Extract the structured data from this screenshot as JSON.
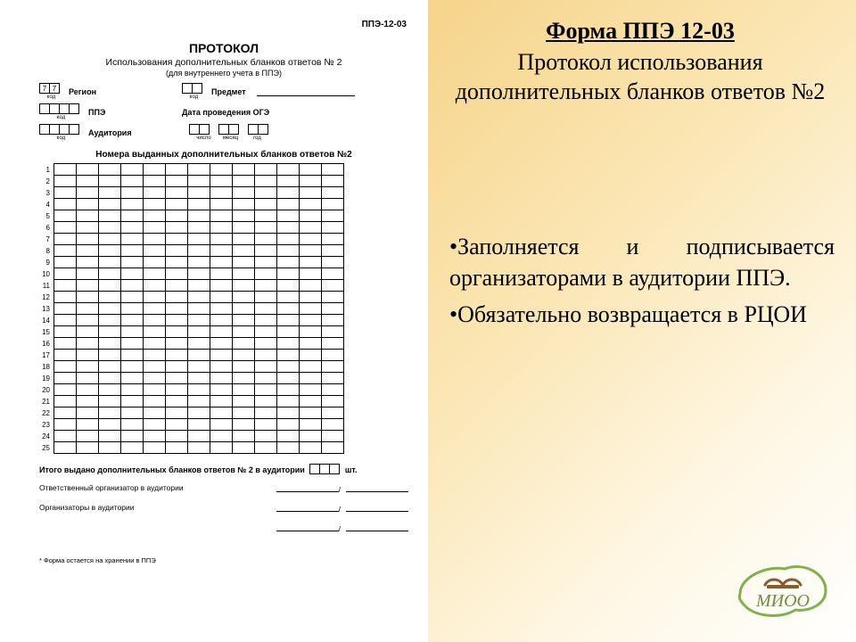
{
  "colors": {
    "grad1": "#f6d48a",
    "grad2": "#fbe7b6",
    "grad3": "#fef6e1",
    "grad4": "#ffffff",
    "logo_green": "#7fb24a",
    "logo_green_dark": "#5e8a34",
    "logo_brown": "#8a5a2b",
    "logo_text": "#6b8e3d"
  },
  "form": {
    "code": "ППЭ-12-03",
    "title_line1": "ПРОТОКОЛ",
    "title_line2": "Использования дополнительных бланков ответов № 2",
    "title_line3": "(для внутреннего учета в ППЭ)",
    "region_label": "Регион",
    "region_value": [
      "7",
      "7"
    ],
    "ppe_label": "ППЭ",
    "aud_label": "Аудитория",
    "subject_label": "Предмет",
    "date_label": "Дата проведения ОГЭ",
    "date_sub": {
      "d": "число",
      "m": "месяц",
      "y": "год"
    },
    "kod": "код",
    "table_caption": "Номера выданных дополнительных бланков ответов №2",
    "row_count": 25,
    "cols_per_row": 13,
    "totals_text_a": "Итого выдано дополнительных бланков ответов № 2 в аудитории",
    "totals_text_b": "шт.",
    "sign1": "Ответственный организатор в аудитории",
    "sign2": "Организаторы в аудитории",
    "footnote": "* Форма остается на хранении в ППЭ"
  },
  "rightPanel": {
    "heading": "Форма ППЭ 12-03",
    "subtitle": "Протокол использования дополнительных бланков ответов №2",
    "bullets": [
      "Заполняется и подписывается организаторами в аудитории ППЭ.",
      "Обязательно возвращается в РЦОИ"
    ],
    "logo_text": "МИОО"
  }
}
